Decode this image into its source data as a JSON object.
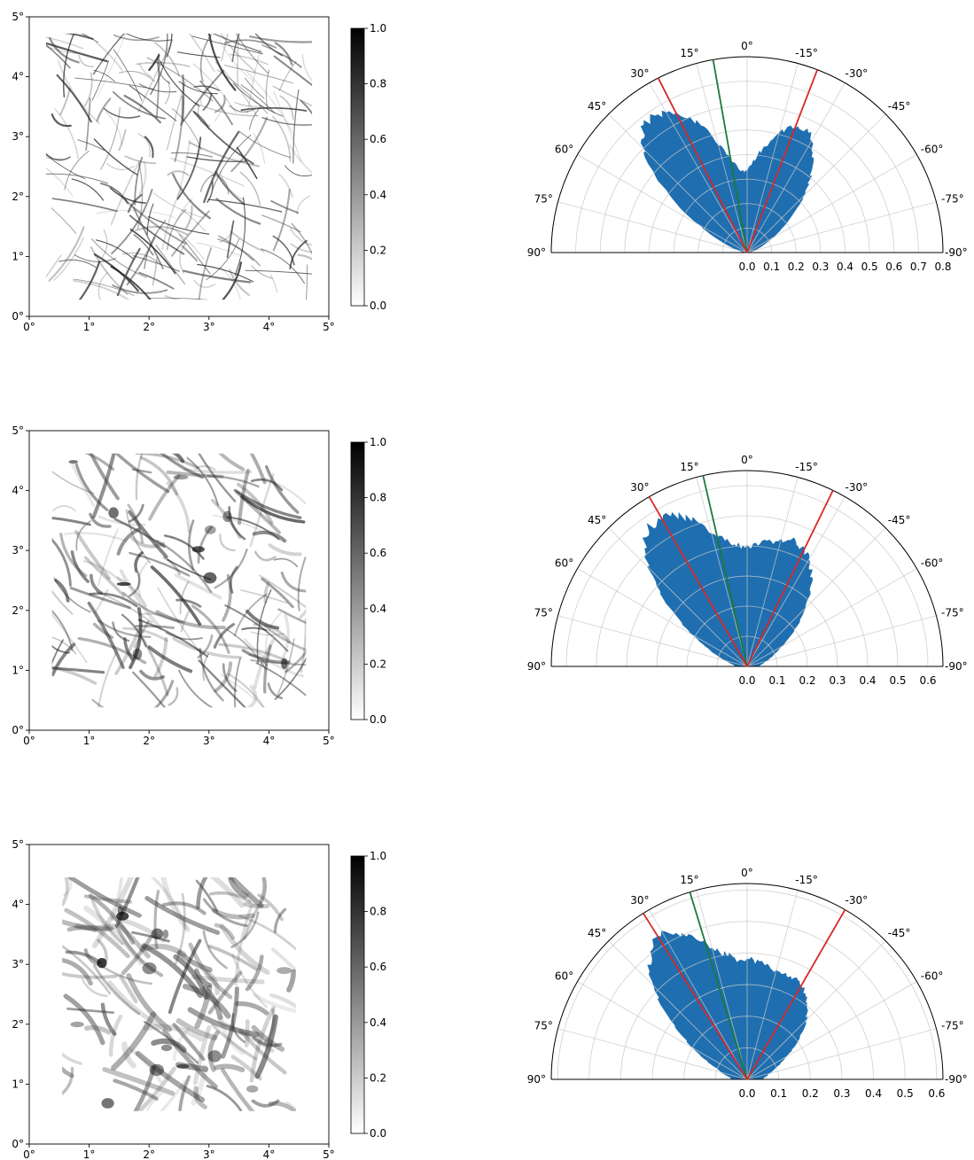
{
  "chart_data": [
    {
      "type": "heatmap",
      "panel": "row-1-image",
      "xlim": [
        0,
        5
      ],
      "ylim": [
        0,
        5
      ],
      "x_ticks": [
        "0°",
        "1°",
        "2°",
        "3°",
        "4°",
        "5°"
      ],
      "y_ticks": [
        "0°",
        "1°",
        "2°",
        "3°",
        "4°",
        "5°"
      ],
      "image_extent": [
        0.28,
        4.72,
        0.28,
        4.72
      ],
      "colormap": "gray_r",
      "colorbar": {
        "range": [
          0.0,
          1.0
        ],
        "ticks": [
          "0.0",
          "0.2",
          "0.4",
          "0.6",
          "0.8",
          "1.0"
        ]
      },
      "streak_style": "thin",
      "grid": false
    },
    {
      "type": "polar",
      "panel": "row-1-polar",
      "theta_range_deg": [
        -90,
        90
      ],
      "theta_ticks": [
        "90°",
        "75°",
        "60°",
        "45°",
        "30°",
        "15°",
        "0°",
        "-15°",
        "-30°",
        "-45°",
        "-60°",
        "-75°",
        "-90°"
      ],
      "r_max": 0.8,
      "r_ticks": [
        "0.0",
        "0.1",
        "0.2",
        "0.3",
        "0.4",
        "0.5",
        "0.6",
        "0.7",
        "0.8"
      ],
      "green_line_deg": 10,
      "red_lines_deg": [
        27,
        -21
      ],
      "color": "#1f6fb0",
      "profile_deg": [
        -90,
        -85,
        -80,
        -75,
        -70,
        -65,
        -60,
        -55,
        -50,
        -45,
        -40,
        -35,
        -30,
        -25,
        -20,
        -15,
        -10,
        -5,
        0,
        5,
        10,
        15,
        20,
        25,
        30,
        35,
        40,
        45,
        50,
        55,
        60,
        65,
        70,
        75,
        80,
        85,
        90
      ],
      "profile_r": [
        0,
        0,
        0.01,
        0.02,
        0.04,
        0.07,
        0.11,
        0.17,
        0.24,
        0.32,
        0.4,
        0.47,
        0.53,
        0.56,
        0.55,
        0.5,
        0.44,
        0.38,
        0.33,
        0.33,
        0.38,
        0.46,
        0.55,
        0.62,
        0.66,
        0.68,
        0.66,
        0.6,
        0.48,
        0.35,
        0.22,
        0.13,
        0.07,
        0.03,
        0.02,
        0.01,
        0
      ],
      "grid": true
    },
    {
      "type": "heatmap",
      "panel": "row-2-image",
      "xlim": [
        0,
        5
      ],
      "ylim": [
        0,
        5
      ],
      "x_ticks": [
        "0°",
        "1°",
        "2°",
        "3°",
        "4°",
        "5°"
      ],
      "y_ticks": [
        "0°",
        "1°",
        "2°",
        "3°",
        "4°",
        "5°"
      ],
      "image_extent": [
        0.38,
        4.62,
        0.38,
        4.62
      ],
      "colormap": "gray_r",
      "colorbar": {
        "range": [
          0.0,
          1.0
        ],
        "ticks": [
          "0.0",
          "0.2",
          "0.4",
          "0.6",
          "0.8",
          "1.0"
        ]
      },
      "streak_style": "medium",
      "grid": false
    },
    {
      "type": "polar",
      "panel": "row-2-polar",
      "theta_range_deg": [
        -90,
        90
      ],
      "theta_ticks": [
        "90°",
        "75°",
        "60°",
        "45°",
        "30°",
        "15°",
        "0°",
        "-15°",
        "-30°",
        "-45°",
        "-60°",
        "-75°",
        "-90°"
      ],
      "r_max": 0.65,
      "r_ticks": [
        "0.0",
        "0.1",
        "0.2",
        "0.3",
        "0.4",
        "0.5",
        "0.6"
      ],
      "green_line_deg": 13,
      "red_lines_deg": [
        30,
        -26
      ],
      "color": "#1f6fb0",
      "profile_deg": [
        -90,
        -85,
        -80,
        -75,
        -70,
        -65,
        -60,
        -55,
        -50,
        -45,
        -40,
        -35,
        -30,
        -25,
        -20,
        -15,
        -10,
        -5,
        0,
        5,
        10,
        15,
        20,
        25,
        30,
        35,
        40,
        45,
        50,
        55,
        60,
        65,
        70,
        75,
        80,
        85,
        90
      ],
      "profile_r": [
        0.04,
        0.04,
        0.05,
        0.06,
        0.08,
        0.1,
        0.13,
        0.17,
        0.22,
        0.27,
        0.32,
        0.37,
        0.41,
        0.43,
        0.44,
        0.43,
        0.42,
        0.4,
        0.39,
        0.4,
        0.42,
        0.46,
        0.51,
        0.55,
        0.57,
        0.56,
        0.53,
        0.46,
        0.37,
        0.28,
        0.2,
        0.14,
        0.1,
        0.07,
        0.05,
        0.04,
        0.04
      ],
      "grid": true
    },
    {
      "type": "heatmap",
      "panel": "row-3-image",
      "xlim": [
        0,
        5
      ],
      "ylim": [
        0,
        5
      ],
      "x_ticks": [
        "0°",
        "1°",
        "2°",
        "3°",
        "4°",
        "5°"
      ],
      "y_ticks": [
        "0°",
        "1°",
        "2°",
        "3°",
        "4°",
        "5°"
      ],
      "image_extent": [
        0.55,
        4.45,
        0.55,
        4.45
      ],
      "colormap": "gray_r",
      "colorbar": {
        "range": [
          0.0,
          1.0
        ],
        "ticks": [
          "0.0",
          "0.2",
          "0.4",
          "0.6",
          "0.8",
          "1.0"
        ]
      },
      "streak_style": "blurred",
      "grid": false
    },
    {
      "type": "polar",
      "panel": "row-3-polar",
      "theta_range_deg": [
        -90,
        90
      ],
      "theta_ticks": [
        "90°",
        "75°",
        "60°",
        "45°",
        "30°",
        "15°",
        "0°",
        "-15°",
        "-30°",
        "-45°",
        "-60°",
        "-75°",
        "-90°"
      ],
      "r_max": 0.62,
      "r_ticks": [
        "0.0",
        "0.1",
        "0.2",
        "0.3",
        "0.4",
        "0.5",
        "0.6"
      ],
      "green_line_deg": 17,
      "red_lines_deg": [
        32,
        -30
      ],
      "color": "#1f6fb0",
      "profile_deg": [
        -90,
        -85,
        -80,
        -75,
        -70,
        -65,
        -60,
        -55,
        -50,
        -45,
        -40,
        -35,
        -30,
        -25,
        -20,
        -15,
        -10,
        -5,
        0,
        5,
        10,
        15,
        20,
        25,
        30,
        35,
        40,
        45,
        50,
        55,
        60,
        65,
        70,
        75,
        80,
        85,
        90
      ],
      "profile_r": [
        0.05,
        0.05,
        0.06,
        0.07,
        0.09,
        0.11,
        0.14,
        0.18,
        0.22,
        0.26,
        0.29,
        0.32,
        0.34,
        0.35,
        0.35,
        0.35,
        0.36,
        0.37,
        0.38,
        0.38,
        0.4,
        0.43,
        0.47,
        0.51,
        0.53,
        0.52,
        0.48,
        0.42,
        0.34,
        0.26,
        0.19,
        0.14,
        0.1,
        0.08,
        0.06,
        0.05,
        0.05
      ],
      "grid": true
    }
  ]
}
